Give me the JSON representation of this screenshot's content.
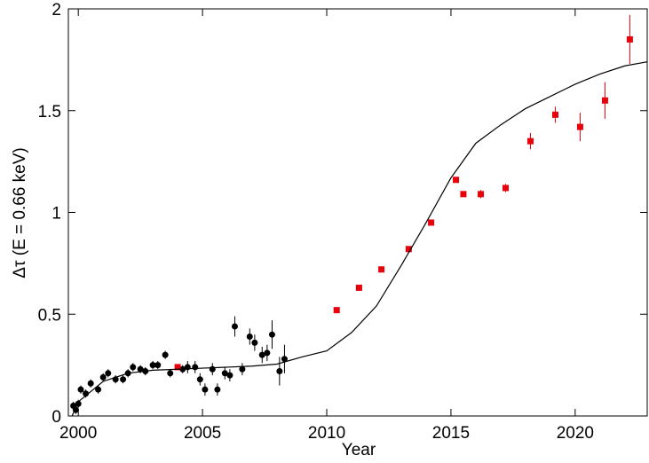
{
  "chart_data": {
    "type": "scatter",
    "xlabel": "Year",
    "ylabel": "Δτ (E = 0.66 keV)",
    "xlim": [
      1999.6,
      2022.9
    ],
    "ylim": [
      0,
      2
    ],
    "xticks": [
      2000,
      2005,
      2010,
      2015,
      2020
    ],
    "yticks": [
      0,
      0.5,
      1,
      1.5,
      2
    ],
    "series": [
      {
        "marker": "circle",
        "color": "#000000",
        "x": [
          1999.8,
          1999.9,
          2000.0,
          2000.1,
          2000.3,
          2000.5,
          2000.8,
          2001.0,
          2001.2,
          2001.5,
          2001.8,
          2002.0,
          2002.2,
          2002.5,
          2002.7,
          2003.0,
          2003.2,
          2003.5,
          2003.7,
          2004.2,
          2004.4,
          2004.7,
          2004.9,
          2005.1,
          2005.4,
          2005.6,
          2005.9,
          2006.1,
          2006.3,
          2006.6,
          2006.9,
          2007.1,
          2007.4,
          2007.6,
          2007.8,
          2008.1,
          2008.3
        ],
        "values": [
          0.05,
          0.03,
          0.06,
          0.13,
          0.11,
          0.16,
          0.13,
          0.19,
          0.21,
          0.18,
          0.18,
          0.21,
          0.24,
          0.23,
          0.22,
          0.25,
          0.25,
          0.3,
          0.21,
          0.23,
          0.24,
          0.24,
          0.18,
          0.13,
          0.23,
          0.13,
          0.21,
          0.2,
          0.44,
          0.23,
          0.39,
          0.36,
          0.3,
          0.31,
          0.4,
          0.22,
          0.28
        ],
        "errors": [
          0.02,
          0.02,
          0.02,
          0.02,
          0.02,
          0.02,
          0.02,
          0.02,
          0.02,
          0.02,
          0.02,
          0.02,
          0.02,
          0.02,
          0.02,
          0.02,
          0.02,
          0.02,
          0.02,
          0.02,
          0.03,
          0.03,
          0.03,
          0.03,
          0.03,
          0.03,
          0.03,
          0.03,
          0.05,
          0.03,
          0.04,
          0.04,
          0.04,
          0.04,
          0.07,
          0.07,
          0.07
        ]
      },
      {
        "marker": "square",
        "color": "#e8000b",
        "x": [
          2004.0,
          2010.4,
          2011.3,
          2012.2,
          2013.3,
          2014.2,
          2015.2,
          2015.5,
          2016.2,
          2017.2,
          2018.2,
          2019.2,
          2020.2,
          2021.2,
          2022.2
        ],
        "values": [
          0.24,
          0.52,
          0.63,
          0.72,
          0.82,
          0.95,
          1.16,
          1.09,
          1.09,
          1.12,
          1.35,
          1.48,
          1.42,
          1.55,
          1.85
        ],
        "errors": [
          0.01,
          0.01,
          0.01,
          0.01,
          0.01,
          0.01,
          0.01,
          0.01,
          0.02,
          0.02,
          0.04,
          0.04,
          0.07,
          0.09,
          0.12
        ]
      },
      {
        "marker": "line",
        "color": "#000000",
        "x": [
          1999.75,
          2000,
          2001,
          2002,
          2003,
          2004,
          2005,
          2006,
          2007,
          2008,
          2009,
          2010,
          2011,
          2012,
          2013,
          2014,
          2015,
          2016,
          2017,
          2018,
          2019,
          2020,
          2021,
          2022,
          2022.9
        ],
        "values": [
          0.0,
          0.07,
          0.17,
          0.21,
          0.225,
          0.23,
          0.235,
          0.24,
          0.245,
          0.255,
          0.29,
          0.32,
          0.41,
          0.54,
          0.74,
          0.95,
          1.17,
          1.34,
          1.43,
          1.51,
          1.57,
          1.63,
          1.68,
          1.72,
          1.74
        ]
      }
    ]
  }
}
